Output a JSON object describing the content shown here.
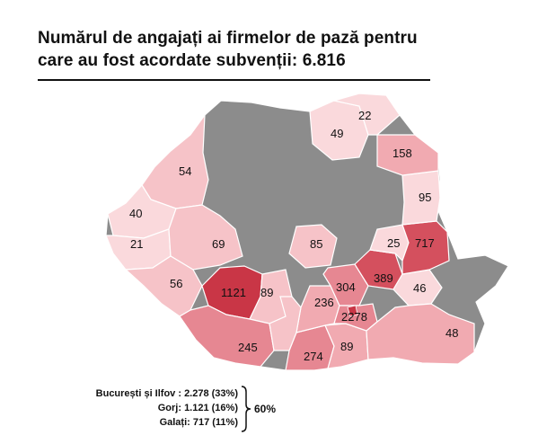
{
  "title": {
    "line1": "Numărul de angajați ai firmelor de pază pentru",
    "line2": "care au fost acordate subvenții: 6.816"
  },
  "colors": {
    "grey": "#8c8c8c",
    "palest": "#fad9dc",
    "pale": "#f6c3c8",
    "light": "#f1aab1",
    "medium": "#e68792",
    "strong": "#d4505e",
    "darkest": "#c93646"
  },
  "counties": [
    {
      "id": "nw-54",
      "value": "54"
    },
    {
      "id": "w-40",
      "value": "40"
    },
    {
      "id": "w-21",
      "value": "21"
    },
    {
      "id": "c-69",
      "value": "69"
    },
    {
      "id": "sw-56",
      "value": "56"
    },
    {
      "id": "gorj",
      "value": "1121"
    },
    {
      "id": "valcea",
      "value": "89"
    },
    {
      "id": "sw-245",
      "value": "245"
    },
    {
      "id": "s-274",
      "value": "274"
    },
    {
      "id": "s-89",
      "value": "89"
    },
    {
      "id": "s-236",
      "value": "236"
    },
    {
      "id": "s-304",
      "value": "304"
    },
    {
      "id": "c-85",
      "value": "85"
    },
    {
      "id": "e-389",
      "value": "389"
    },
    {
      "id": "bucuresti-ilfov",
      "value": "2278"
    },
    {
      "id": "se-46",
      "value": "46"
    },
    {
      "id": "se-48",
      "value": "48"
    },
    {
      "id": "e-25",
      "value": "25"
    },
    {
      "id": "galati",
      "value": "717"
    },
    {
      "id": "ne-95",
      "value": "95"
    },
    {
      "id": "ne-158",
      "value": "158"
    },
    {
      "id": "n-49",
      "value": "49"
    },
    {
      "id": "n-22",
      "value": "22"
    }
  ],
  "legend": {
    "rows": [
      "București și Ilfov : 2.278 (33%)",
      "Gorj: 1.121 (16%)",
      "Galați: 717 (11%)"
    ],
    "total": "60%"
  }
}
